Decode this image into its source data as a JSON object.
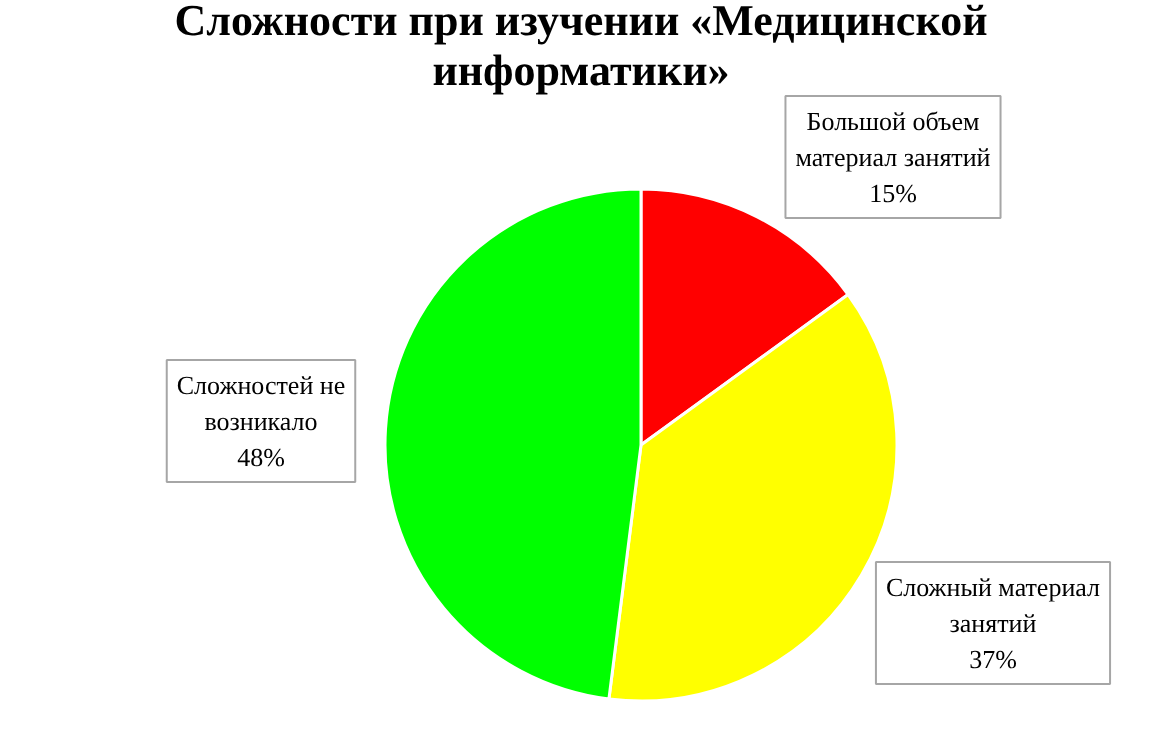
{
  "chart_data": {
    "type": "pie",
    "title": "Сложности при изучении «Медицинской информатики»",
    "categories": [
      "Большой объем материал занятий",
      "Сложный материал занятий",
      "Сложностей не возникало"
    ],
    "values": [
      15,
      37,
      48
    ],
    "colors": [
      "#ff0000",
      "#ffff00",
      "#00ff00"
    ],
    "value_labels": [
      "15%",
      "37%",
      "48%"
    ]
  }
}
